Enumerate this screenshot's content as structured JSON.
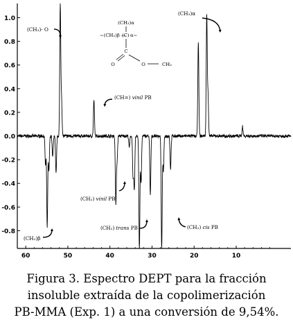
{
  "chart_data": {
    "type": "line",
    "title": "",
    "xlabel": "",
    "ylabel": "",
    "xlim": [
      62,
      -3
    ],
    "ylim": [
      -0.95,
      1.12
    ],
    "x_ticks": [
      60,
      50,
      40,
      30,
      20,
      10
    ],
    "x_tick_labels": [
      "60",
      "50",
      "40",
      "30",
      "20",
      "10"
    ],
    "y_ticks": [
      1.0,
      0.8,
      0.6,
      0.4,
      0.2,
      0.0,
      -0.2,
      -0.4,
      -0.6,
      -0.8
    ],
    "y_tick_labels": [
      "1.0",
      "0.8",
      "0.6",
      "0.4",
      "0.2",
      "0.0",
      "-0.2",
      "-0.4",
      "-0.6",
      "-0.8"
    ],
    "grid": false,
    "series": [
      {
        "color": "#000000",
        "peaks": [
          {
            "x": 55.3,
            "y": -0.25
          },
          {
            "x": 54.9,
            "y": -0.78
          },
          {
            "x": 54.5,
            "y": -0.3
          },
          {
            "x": 53.6,
            "y": -0.18
          },
          {
            "x": 52.8,
            "y": -0.32
          },
          {
            "x": 51.8,
            "y": 1.12
          },
          {
            "x": 51.5,
            "y": 0.32
          },
          {
            "x": 43.8,
            "y": 0.3
          },
          {
            "x": 38.6,
            "y": -0.57
          },
          {
            "x": 38.3,
            "y": -0.2
          },
          {
            "x": 35.4,
            "y": -0.1
          },
          {
            "x": 34.5,
            "y": -0.35
          },
          {
            "x": 34.2,
            "y": -0.45
          },
          {
            "x": 33.0,
            "y": -0.98
          },
          {
            "x": 32.6,
            "y": -0.4
          },
          {
            "x": 30.4,
            "y": -0.5
          },
          {
            "x": 27.7,
            "y": -0.98
          },
          {
            "x": 27.3,
            "y": -0.3
          },
          {
            "x": 25.6,
            "y": -0.28
          },
          {
            "x": 19.0,
            "y": 0.8
          },
          {
            "x": 17.0,
            "y": 1.02
          },
          {
            "x": 16.7,
            "y": 0.35
          },
          {
            "x": 8.5,
            "y": 0.08
          }
        ]
      }
    ],
    "annotations": [
      {
        "id": "ch2-o",
        "text": "(CH₃)- O"
      },
      {
        "id": "ch3-alpha",
        "text": "(CH₃)α"
      },
      {
        "id": "ch-vinil",
        "text_plain": "(CH=) ",
        "text_italic": "vinil",
        "text_tail": " PB"
      },
      {
        "id": "ch2-vinil",
        "text_plain": "(CH₂) ",
        "text_italic": "vinil",
        "text_tail": " PB"
      },
      {
        "id": "ch2-trans",
        "text_plain": "(CH₂) ",
        "text_italic": "trans",
        "text_tail": " PB"
      },
      {
        "id": "ch2-cis",
        "text_plain": "(CH₂) ",
        "text_italic": "cis",
        "text_tail": " PB"
      },
      {
        "id": "ch2-beta",
        "text": "(CH₂)β"
      }
    ],
    "structure_labels": {
      "top": "(CH₃)α",
      "chain_left": "~(CH₂)β —",
      "center": "(C)",
      "chain_right": "α~",
      "carbonyl_c": "C",
      "o_double": "O",
      "o_ester": "O",
      "methyl": "CH₃"
    }
  },
  "caption": {
    "line1": "Figura 3. Espectro DEPT  para la fracción",
    "line2": "insoluble extraída de la copolimerización",
    "line3": "PB-MMA (Exp. 1) a una conversión de 9,54%."
  }
}
